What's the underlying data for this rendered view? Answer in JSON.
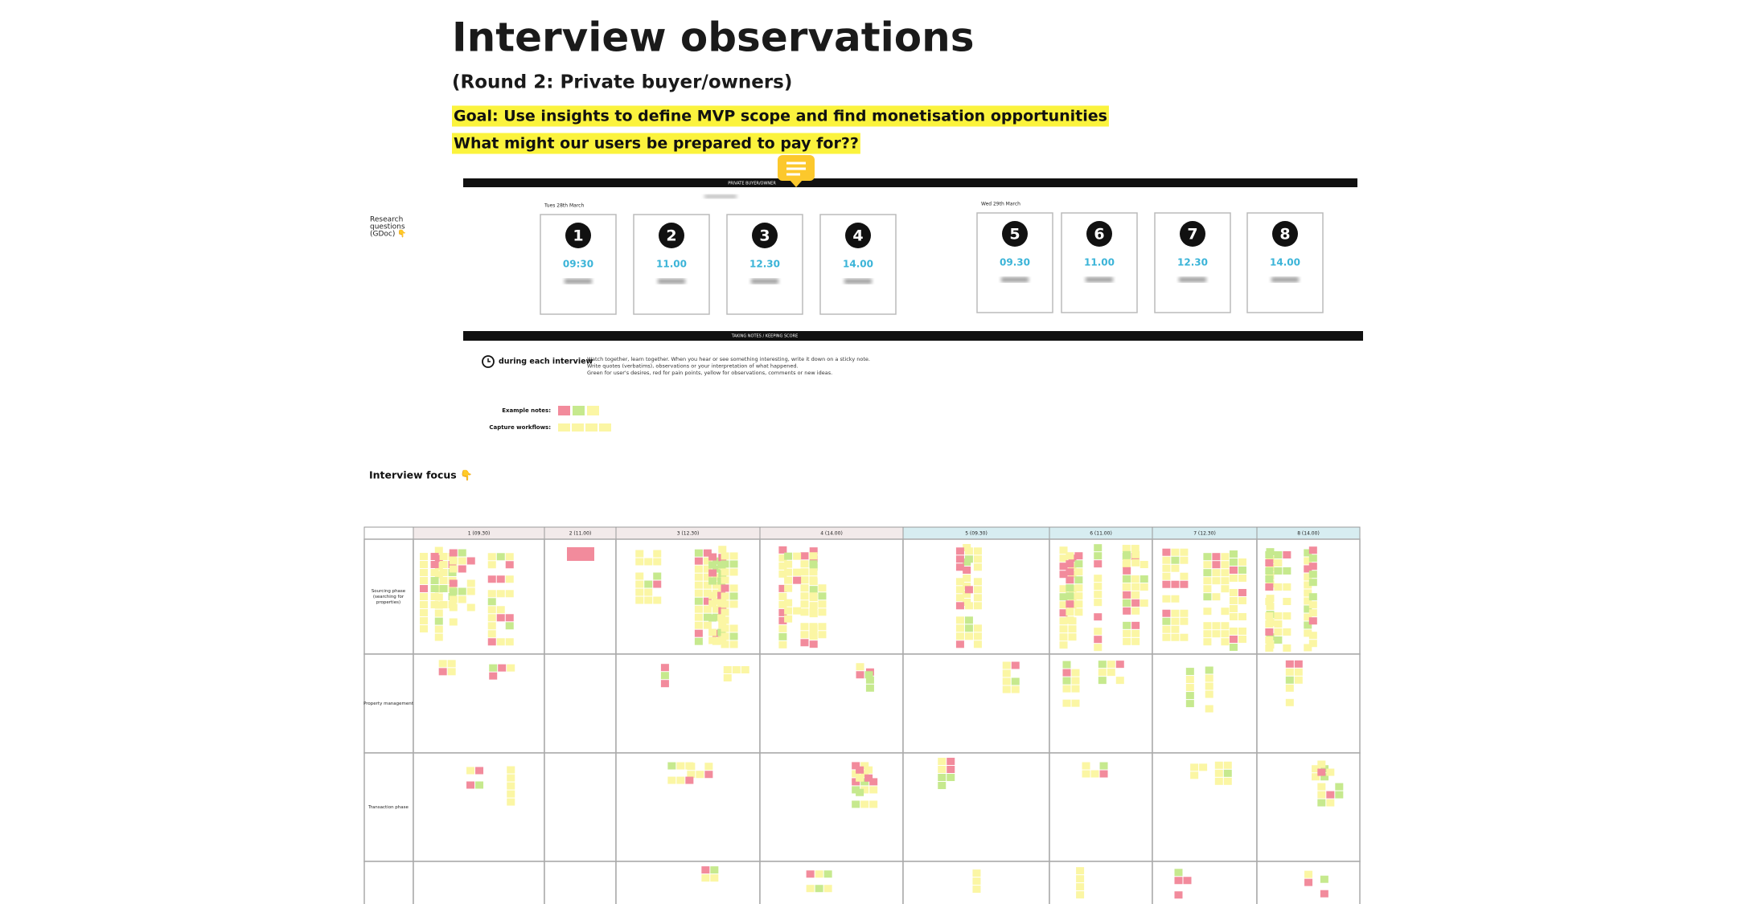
{
  "header": {
    "title": "Interview observations",
    "subtitle": "(Round 2: Private buyer/owners)",
    "goals": [
      "Goal: Use insights to define MVP scope and find monetisation opportunities",
      "What might our users be prepared to pay for??"
    ]
  },
  "side_note": [
    "Research",
    "questions",
    "(GDoc) 👇"
  ],
  "schedule": {
    "banner": "PRIVATE BUYER/OWNER",
    "days": [
      {
        "date": "Tues 28th March",
        "sessions": [
          {
            "number": "1",
            "time": "09:30"
          },
          {
            "number": "2",
            "time": "11.00"
          },
          {
            "number": "3",
            "time": "12.30"
          },
          {
            "number": "4",
            "time": "14.00"
          }
        ]
      },
      {
        "date": "Wed 29th March",
        "sessions": [
          {
            "number": "5",
            "time": "09.30"
          },
          {
            "number": "6",
            "time": "11.00"
          },
          {
            "number": "7",
            "time": "12.30"
          },
          {
            "number": "8",
            "time": "14.00"
          }
        ]
      }
    ]
  },
  "notes_section": {
    "banner": "TAKING NOTES / KEEPING SCORE",
    "heading": "during each interview",
    "instructions": [
      "Watch together, learn together. When you hear or see something interesting, write it down on a sticky note.",
      "Write quotes (verbatims), observations or your interpretation of what happened.",
      "Green for user's desires, red for pain points, yellow for observations, comments or new ideas."
    ],
    "example_label": "Example notes:",
    "workflow_label": "Capture workflows:"
  },
  "focus": {
    "label": "Interview focus 👇",
    "columns": [
      "1 (09.30)",
      "2 (11.00)",
      "3 (12.30)",
      "4 (14.00)",
      "5 (09.30)",
      "6 (11.00)",
      "7 (12.30)",
      "8 (14.00)"
    ],
    "rows": [
      [
        "Sourcing phase",
        "(searching for",
        "properties)"
      ],
      [
        "Property management"
      ],
      [
        "Transaction phase"
      ]
    ]
  }
}
